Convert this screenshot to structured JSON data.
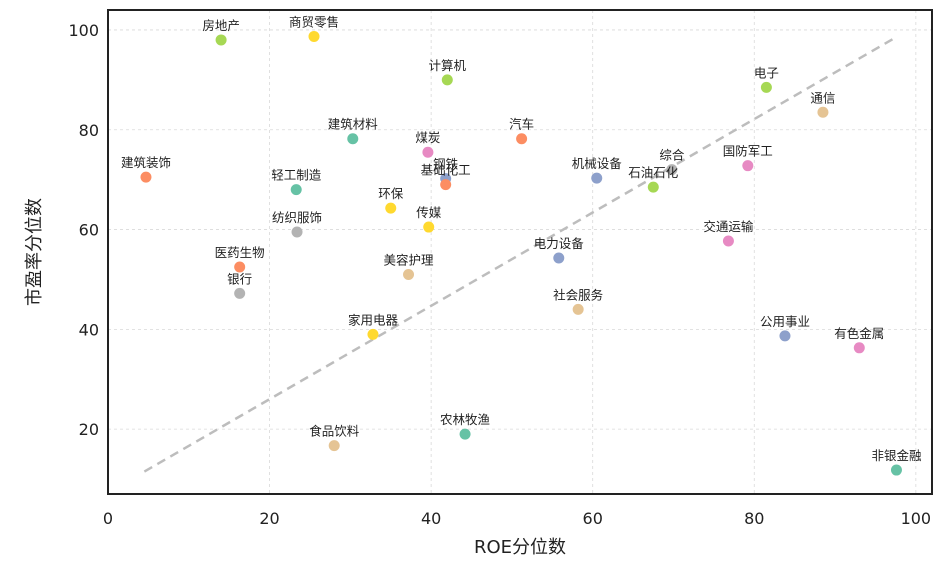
{
  "chart_data": {
    "type": "scatter",
    "title": "",
    "xlabel": "ROE分位数",
    "ylabel": "市盈率分位数",
    "xlim": [
      0,
      102
    ],
    "ylim": [
      7,
      104
    ],
    "xticks": [
      0,
      20,
      40,
      60,
      80,
      100
    ],
    "yticks": [
      20,
      40,
      60,
      80,
      100
    ],
    "grid": true,
    "trendline": {
      "style": "dashed",
      "color": "#bdbdbd",
      "from": [
        4.5,
        11.5
      ],
      "to": [
        97.5,
        98.5
      ]
    },
    "points": [
      {
        "label": "房地产",
        "x": 14.0,
        "y": 98.0,
        "color": "#a6d854"
      },
      {
        "label": "商贸零售",
        "x": 25.5,
        "y": 98.7,
        "color": "#ffd92f"
      },
      {
        "label": "计算机",
        "x": 42.0,
        "y": 90.0,
        "color": "#a6d854"
      },
      {
        "label": "电子",
        "x": 81.5,
        "y": 88.5,
        "color": "#a6d854"
      },
      {
        "label": "通信",
        "x": 88.5,
        "y": 83.5,
        "color": "#e5c494"
      },
      {
        "label": "建筑材料",
        "x": 30.3,
        "y": 78.2,
        "color": "#66c2a5"
      },
      {
        "label": "汽车",
        "x": 51.2,
        "y": 78.2,
        "color": "#fc8d62"
      },
      {
        "label": "煤炭",
        "x": 39.6,
        "y": 75.5,
        "color": "#e78ac3"
      },
      {
        "label": "钢铁",
        "x": 41.8,
        "y": 70.2,
        "color": "#8da0cb"
      },
      {
        "label": "基础化工",
        "x": 41.8,
        "y": 69.0,
        "color": "#fc8d62"
      },
      {
        "label": "机械设备",
        "x": 60.5,
        "y": 70.3,
        "color": "#8da0cb"
      },
      {
        "label": "综合",
        "x": 69.8,
        "y": 72.0,
        "color": "#b3b3b3"
      },
      {
        "label": "石油石化",
        "x": 67.5,
        "y": 68.5,
        "color": "#a6d854"
      },
      {
        "label": "国防军工",
        "x": 79.2,
        "y": 72.8,
        "color": "#e78ac3"
      },
      {
        "label": "建筑装饰",
        "x": 4.7,
        "y": 70.5,
        "color": "#fc8d62"
      },
      {
        "label": "轻工制造",
        "x": 23.3,
        "y": 68.0,
        "color": "#66c2a5"
      },
      {
        "label": "环保",
        "x": 35.0,
        "y": 64.3,
        "color": "#ffd92f"
      },
      {
        "label": "纺织服饰",
        "x": 23.4,
        "y": 59.5,
        "color": "#b3b3b3"
      },
      {
        "label": "传媒",
        "x": 39.7,
        "y": 60.5,
        "color": "#ffd92f"
      },
      {
        "label": "交通运输",
        "x": 76.8,
        "y": 57.7,
        "color": "#e78ac3"
      },
      {
        "label": "电力设备",
        "x": 55.8,
        "y": 54.3,
        "color": "#8da0cb"
      },
      {
        "label": "医药生物",
        "x": 16.3,
        "y": 52.5,
        "color": "#fc8d62"
      },
      {
        "label": "美容护理",
        "x": 37.2,
        "y": 51.0,
        "color": "#e5c494"
      },
      {
        "label": "银行",
        "x": 16.3,
        "y": 47.2,
        "color": "#b3b3b3"
      },
      {
        "label": "社会服务",
        "x": 58.2,
        "y": 44.0,
        "color": "#e5c494"
      },
      {
        "label": "家用电器",
        "x": 32.8,
        "y": 39.0,
        "color": "#ffd92f"
      },
      {
        "label": "公用事业",
        "x": 83.8,
        "y": 38.7,
        "color": "#8da0cb"
      },
      {
        "label": "有色金属",
        "x": 93.0,
        "y": 36.3,
        "color": "#e78ac3"
      },
      {
        "label": "农林牧渔",
        "x": 44.2,
        "y": 19.0,
        "color": "#66c2a5"
      },
      {
        "label": "食品饮料",
        "x": 28.0,
        "y": 16.7,
        "color": "#e5c494"
      },
      {
        "label": "非银金融",
        "x": 97.6,
        "y": 11.8,
        "color": "#66c2a5"
      }
    ]
  }
}
